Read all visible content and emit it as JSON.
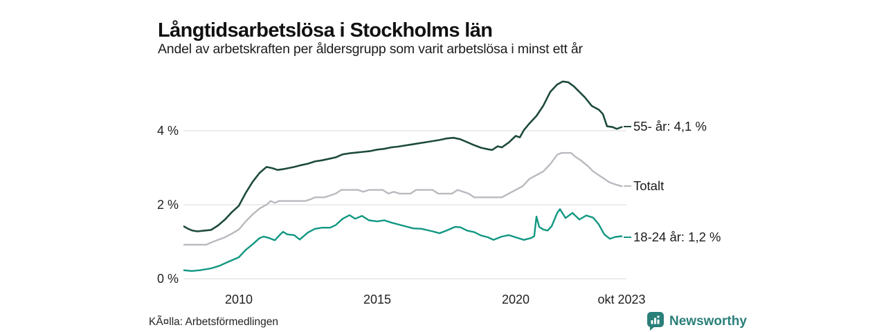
{
  "title": "Långtidsarbetslösa i Stockholms län",
  "subtitle": "Andel av arbetskraften per åldersgrupp som varit arbetslösa i minst ett år",
  "source": "KÃ¤lla: Arbetsförmedlingen",
  "brand": {
    "name": "Newsworthy",
    "color": "#2a7f79"
  },
  "chart_data": {
    "type": "line",
    "title": "Långtidsarbetslösa i Stockholms län",
    "subtitle": "Andel av arbetskraften per åldersgrupp som varit arbetslösa i minst ett år",
    "unit": "% av arbetskraften",
    "grid": "horizontal-only",
    "legend_position": "right-end-labels",
    "x_axis": {
      "range": [
        2008.0,
        2024.0
      ],
      "ticks": [
        {
          "t": 2010,
          "label": "2010"
        },
        {
          "t": 2015,
          "label": "2015"
        },
        {
          "t": 2020,
          "label": "2020"
        },
        {
          "t": 2023.83,
          "label": "okt 2023"
        }
      ]
    },
    "y_axis": {
      "range": [
        0,
        5.66
      ],
      "gridline_color": "#d9d9d9",
      "ticks": [
        {
          "v": 0,
          "label": "0 %"
        },
        {
          "v": 2,
          "label": "2 %"
        },
        {
          "v": 4,
          "label": "4 %"
        }
      ]
    },
    "series": [
      {
        "name": "55- år",
        "end_label": "55- år: 4,1 %",
        "latest_value": "4,1 %",
        "color": "#1d4a3c",
        "width": 2.6,
        "points": [
          [
            2008.0,
            1.42
          ],
          [
            2008.17,
            1.35
          ],
          [
            2008.33,
            1.3
          ],
          [
            2008.5,
            1.28
          ],
          [
            2008.75,
            1.3
          ],
          [
            2009.0,
            1.32
          ],
          [
            2009.25,
            1.44
          ],
          [
            2009.5,
            1.6
          ],
          [
            2009.75,
            1.8
          ],
          [
            2010.0,
            1.97
          ],
          [
            2010.25,
            2.32
          ],
          [
            2010.5,
            2.62
          ],
          [
            2010.75,
            2.86
          ],
          [
            2011.0,
            3.02
          ],
          [
            2011.2,
            2.99
          ],
          [
            2011.4,
            2.94
          ],
          [
            2011.6,
            2.96
          ],
          [
            2011.8,
            2.99
          ],
          [
            2012.0,
            3.02
          ],
          [
            2012.25,
            3.07
          ],
          [
            2012.5,
            3.11
          ],
          [
            2012.75,
            3.17
          ],
          [
            2013.0,
            3.2
          ],
          [
            2013.25,
            3.24
          ],
          [
            2013.5,
            3.28
          ],
          [
            2013.75,
            3.36
          ],
          [
            2014.0,
            3.39
          ],
          [
            2014.25,
            3.41
          ],
          [
            2014.5,
            3.43
          ],
          [
            2014.75,
            3.45
          ],
          [
            2015.0,
            3.49
          ],
          [
            2015.25,
            3.51
          ],
          [
            2015.5,
            3.55
          ],
          [
            2015.75,
            3.57
          ],
          [
            2016.0,
            3.6
          ],
          [
            2016.25,
            3.63
          ],
          [
            2016.5,
            3.66
          ],
          [
            2016.75,
            3.69
          ],
          [
            2017.0,
            3.72
          ],
          [
            2017.25,
            3.75
          ],
          [
            2017.5,
            3.79
          ],
          [
            2017.75,
            3.81
          ],
          [
            2018.0,
            3.77
          ],
          [
            2018.25,
            3.69
          ],
          [
            2018.5,
            3.61
          ],
          [
            2018.75,
            3.54
          ],
          [
            2019.0,
            3.5
          ],
          [
            2019.15,
            3.48
          ],
          [
            2019.35,
            3.58
          ],
          [
            2019.5,
            3.55
          ],
          [
            2019.75,
            3.68
          ],
          [
            2020.0,
            3.86
          ],
          [
            2020.15,
            3.82
          ],
          [
            2020.3,
            4.02
          ],
          [
            2020.5,
            4.2
          ],
          [
            2020.75,
            4.4
          ],
          [
            2021.0,
            4.68
          ],
          [
            2021.25,
            5.05
          ],
          [
            2021.5,
            5.25
          ],
          [
            2021.7,
            5.33
          ],
          [
            2021.9,
            5.31
          ],
          [
            2022.1,
            5.2
          ],
          [
            2022.3,
            5.05
          ],
          [
            2022.5,
            4.9
          ],
          [
            2022.75,
            4.67
          ],
          [
            2023.0,
            4.57
          ],
          [
            2023.15,
            4.45
          ],
          [
            2023.3,
            4.12
          ],
          [
            2023.5,
            4.1
          ],
          [
            2023.65,
            4.05
          ],
          [
            2023.83,
            4.1
          ]
        ]
      },
      {
        "name": "Totalt",
        "end_label": "Totalt",
        "color": "#b9b9bf",
        "width": 2.4,
        "points": [
          [
            2008.0,
            0.92
          ],
          [
            2008.5,
            0.92
          ],
          [
            2008.83,
            0.92
          ],
          [
            2009.0,
            0.98
          ],
          [
            2009.25,
            1.05
          ],
          [
            2009.5,
            1.12
          ],
          [
            2009.75,
            1.22
          ],
          [
            2010.0,
            1.33
          ],
          [
            2010.25,
            1.55
          ],
          [
            2010.5,
            1.74
          ],
          [
            2010.75,
            1.9
          ],
          [
            2011.0,
            2.0
          ],
          [
            2011.15,
            2.1
          ],
          [
            2011.3,
            2.05
          ],
          [
            2011.45,
            2.1
          ],
          [
            2011.6,
            2.1
          ],
          [
            2012.0,
            2.1
          ],
          [
            2012.4,
            2.1
          ],
          [
            2012.6,
            2.15
          ],
          [
            2012.75,
            2.2
          ],
          [
            2013.1,
            2.2
          ],
          [
            2013.3,
            2.25
          ],
          [
            2013.5,
            2.3
          ],
          [
            2013.7,
            2.4
          ],
          [
            2014.3,
            2.4
          ],
          [
            2014.5,
            2.35
          ],
          [
            2014.7,
            2.4
          ],
          [
            2015.2,
            2.4
          ],
          [
            2015.4,
            2.3
          ],
          [
            2015.6,
            2.35
          ],
          [
            2015.8,
            2.3
          ],
          [
            2016.2,
            2.3
          ],
          [
            2016.4,
            2.4
          ],
          [
            2017.0,
            2.4
          ],
          [
            2017.2,
            2.3
          ],
          [
            2017.7,
            2.3
          ],
          [
            2017.9,
            2.4
          ],
          [
            2018.1,
            2.35
          ],
          [
            2018.3,
            2.3
          ],
          [
            2018.5,
            2.2
          ],
          [
            2019.5,
            2.2
          ],
          [
            2019.75,
            2.3
          ],
          [
            2020.0,
            2.4
          ],
          [
            2020.25,
            2.5
          ],
          [
            2020.5,
            2.7
          ],
          [
            2020.75,
            2.8
          ],
          [
            2021.0,
            2.9
          ],
          [
            2021.25,
            3.1
          ],
          [
            2021.5,
            3.35
          ],
          [
            2021.65,
            3.4
          ],
          [
            2022.0,
            3.4
          ],
          [
            2022.15,
            3.3
          ],
          [
            2022.35,
            3.2
          ],
          [
            2022.6,
            3.05
          ],
          [
            2022.8,
            2.9
          ],
          [
            2023.0,
            2.8
          ],
          [
            2023.2,
            2.7
          ],
          [
            2023.4,
            2.6
          ],
          [
            2023.6,
            2.55
          ],
          [
            2023.83,
            2.5
          ]
        ]
      },
      {
        "name": "18-24 år",
        "end_label": "18-24 år: 1,2 %",
        "latest_value": "1,2 %",
        "color": "#109781",
        "width": 2.4,
        "points": [
          [
            2008.0,
            0.23
          ],
          [
            2008.3,
            0.21
          ],
          [
            2008.6,
            0.23
          ],
          [
            2009.0,
            0.28
          ],
          [
            2009.3,
            0.35
          ],
          [
            2009.6,
            0.45
          ],
          [
            2010.0,
            0.58
          ],
          [
            2010.25,
            0.78
          ],
          [
            2010.5,
            0.93
          ],
          [
            2010.75,
            1.1
          ],
          [
            2010.9,
            1.14
          ],
          [
            2011.1,
            1.1
          ],
          [
            2011.3,
            1.04
          ],
          [
            2011.5,
            1.2
          ],
          [
            2011.6,
            1.27
          ],
          [
            2011.75,
            1.2
          ],
          [
            2012.0,
            1.18
          ],
          [
            2012.2,
            1.06
          ],
          [
            2012.5,
            1.25
          ],
          [
            2012.75,
            1.35
          ],
          [
            2013.0,
            1.38
          ],
          [
            2013.3,
            1.38
          ],
          [
            2013.5,
            1.45
          ],
          [
            2013.75,
            1.62
          ],
          [
            2014.0,
            1.72
          ],
          [
            2014.2,
            1.62
          ],
          [
            2014.45,
            1.7
          ],
          [
            2014.7,
            1.58
          ],
          [
            2015.0,
            1.55
          ],
          [
            2015.25,
            1.58
          ],
          [
            2015.5,
            1.52
          ],
          [
            2015.75,
            1.47
          ],
          [
            2016.0,
            1.42
          ],
          [
            2016.3,
            1.36
          ],
          [
            2016.6,
            1.35
          ],
          [
            2017.0,
            1.28
          ],
          [
            2017.25,
            1.23
          ],
          [
            2017.5,
            1.3
          ],
          [
            2017.8,
            1.4
          ],
          [
            2018.0,
            1.39
          ],
          [
            2018.25,
            1.3
          ],
          [
            2018.5,
            1.26
          ],
          [
            2018.75,
            1.17
          ],
          [
            2019.0,
            1.12
          ],
          [
            2019.2,
            1.05
          ],
          [
            2019.5,
            1.14
          ],
          [
            2019.75,
            1.18
          ],
          [
            2020.0,
            1.12
          ],
          [
            2020.3,
            1.05
          ],
          [
            2020.55,
            1.1
          ],
          [
            2020.67,
            1.15
          ],
          [
            2020.75,
            1.68
          ],
          [
            2020.85,
            1.4
          ],
          [
            2021.0,
            1.33
          ],
          [
            2021.15,
            1.3
          ],
          [
            2021.3,
            1.42
          ],
          [
            2021.5,
            1.78
          ],
          [
            2021.6,
            1.88
          ],
          [
            2021.8,
            1.64
          ],
          [
            2022.05,
            1.78
          ],
          [
            2022.3,
            1.6
          ],
          [
            2022.55,
            1.71
          ],
          [
            2022.8,
            1.65
          ],
          [
            2023.0,
            1.47
          ],
          [
            2023.2,
            1.2
          ],
          [
            2023.4,
            1.08
          ],
          [
            2023.6,
            1.13
          ],
          [
            2023.83,
            1.15
          ]
        ]
      }
    ]
  }
}
